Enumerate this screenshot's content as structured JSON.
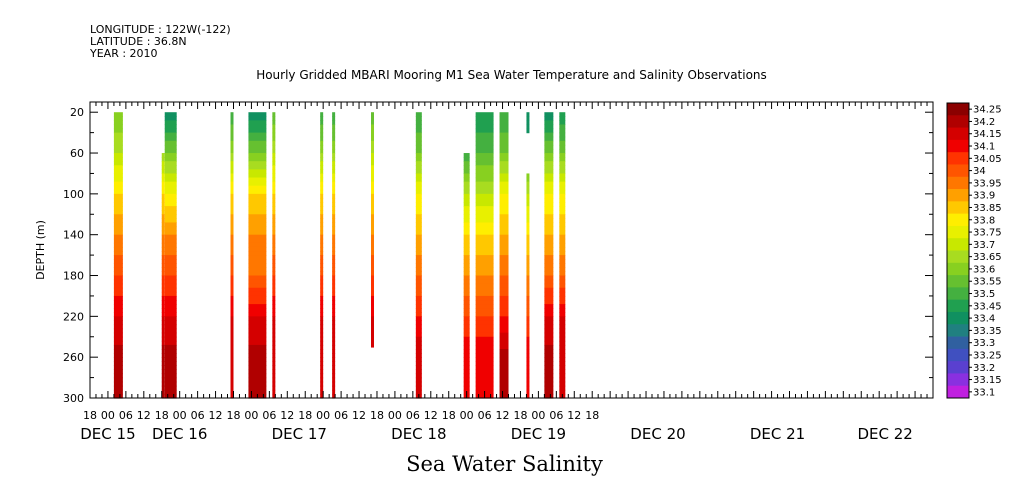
{
  "meta": {
    "longitude": "LONGITUDE : 122W(-122)",
    "latitude": "LATITUDE : 36.8N",
    "year": "YEAR : 2010"
  },
  "chart_data": {
    "type": "heatmap",
    "title": "Hourly Gridded MBARI Mooring M1 Sea Water Temperature and Salinity Observations",
    "xlabel": "",
    "ylabel": "DEPTH (m)",
    "bottom_title": "Sea Water Salinity",
    "x_unit": "hours since DEC 15 00:00, 2010",
    "xlim": [
      -6,
      276
    ],
    "ylim": [
      300,
      10
    ],
    "y_ticks": [
      20,
      60,
      100,
      140,
      180,
      220,
      260,
      300
    ],
    "x_hour_labels": [
      "18",
      "00",
      "06",
      "12",
      "18",
      "00",
      "06",
      "12",
      "18",
      "00",
      "06",
      "12",
      "18",
      "00",
      "06",
      "12",
      "18",
      "00",
      "06",
      "12",
      "18",
      "00",
      "06",
      "12",
      "18",
      "00",
      "06",
      "12",
      "18"
    ],
    "x_hour_label_positions": [
      -6,
      0,
      6,
      12,
      18,
      24,
      30,
      36,
      42,
      48,
      54,
      60,
      66,
      72,
      78,
      84,
      90,
      96,
      102,
      108,
      114,
      120,
      126,
      132,
      138,
      144,
      150,
      156,
      162
    ],
    "x_day_labels": [
      {
        "label": "DEC 15",
        "x": 0
      },
      {
        "label": "DEC 16",
        "x": 24
      },
      {
        "label": "DEC 17",
        "x": 64
      },
      {
        "label": "DEC 18",
        "x": 104
      },
      {
        "label": "DEC 19",
        "x": 144
      },
      {
        "label": "DEC 20",
        "x": 184
      },
      {
        "label": "DEC 21",
        "x": 224
      },
      {
        "label": "DEC 22",
        "x": 260
      }
    ],
    "colorbar": {
      "levels": [
        "34.25",
        "34.2",
        "34.15",
        "34.1",
        "34.05",
        "34",
        "33.95",
        "33.9",
        "33.85",
        "33.8",
        "33.75",
        "33.7",
        "33.65",
        "33.6",
        "33.55",
        "33.5",
        "33.45",
        "33.4",
        "33.35",
        "33.3",
        "33.25",
        "33.2",
        "33.15",
        "33.1"
      ],
      "colors": [
        "#8b0000",
        "#b00000",
        "#d40000",
        "#f00000",
        "#ff3300",
        "#ff5500",
        "#ff7700",
        "#ffa000",
        "#ffc800",
        "#ffee00",
        "#e8f000",
        "#c8e800",
        "#a8dc20",
        "#88d020",
        "#66c030",
        "#44b040",
        "#20a050",
        "#109060",
        "#208080",
        "#3060a0",
        "#4050c0",
        "#5a40d0",
        "#8a30e0",
        "#c020e0"
      ]
    },
    "segments": [
      {
        "x0": 2,
        "x1": 5,
        "top": 20,
        "profile": [
          [
            20,
            33.6
          ],
          [
            60,
            33.7
          ],
          [
            100,
            33.85
          ],
          [
            140,
            33.95
          ],
          [
            180,
            34.05
          ],
          [
            220,
            34.15
          ],
          [
            260,
            34.22
          ],
          [
            300,
            34.2
          ]
        ]
      },
      {
        "x0": 18,
        "x1": 19,
        "top": 60,
        "profile": [
          [
            60,
            33.65
          ],
          [
            100,
            33.85
          ],
          [
            140,
            33.95
          ],
          [
            180,
            34.05
          ],
          [
            220,
            34.15
          ],
          [
            260,
            34.22
          ],
          [
            300,
            34.2
          ]
        ]
      },
      {
        "x0": 19,
        "x1": 23,
        "top": 20,
        "profile": [
          [
            20,
            33.4
          ],
          [
            60,
            33.6
          ],
          [
            100,
            33.8
          ],
          [
            140,
            33.95
          ],
          [
            180,
            34.05
          ],
          [
            220,
            34.15
          ],
          [
            260,
            34.22
          ],
          [
            300,
            34.2
          ]
        ]
      },
      {
        "x0": 41,
        "x1": 42,
        "top": 20,
        "profile": [
          [
            20,
            33.5
          ],
          [
            60,
            33.65
          ],
          [
            100,
            33.85
          ],
          [
            140,
            33.95
          ],
          [
            180,
            34.05
          ],
          [
            220,
            34.15
          ],
          [
            260,
            34.2
          ],
          [
            300,
            34.15
          ]
        ]
      },
      {
        "x0": 47,
        "x1": 53,
        "top": 20,
        "profile": [
          [
            20,
            33.4
          ],
          [
            60,
            33.6
          ],
          [
            100,
            33.85
          ],
          [
            140,
            33.95
          ],
          [
            180,
            34.0
          ],
          [
            220,
            34.15
          ],
          [
            260,
            34.22
          ],
          [
            300,
            34.2
          ]
        ]
      },
      {
        "x0": 55,
        "x1": 56,
        "top": 20,
        "profile": [
          [
            20,
            33.55
          ],
          [
            60,
            33.7
          ],
          [
            100,
            33.85
          ],
          [
            140,
            33.95
          ],
          [
            180,
            34.05
          ],
          [
            220,
            34.15
          ],
          [
            260,
            34.2
          ],
          [
            300,
            34.15
          ]
        ]
      },
      {
        "x0": 71,
        "x1": 72,
        "top": 20,
        "profile": [
          [
            20,
            33.5
          ],
          [
            60,
            33.65
          ],
          [
            100,
            33.85
          ],
          [
            140,
            33.95
          ],
          [
            180,
            34.05
          ],
          [
            220,
            34.15
          ],
          [
            260,
            34.2
          ],
          [
            300,
            34.15
          ]
        ]
      },
      {
        "x0": 75,
        "x1": 76,
        "top": 20,
        "profile": [
          [
            20,
            33.5
          ],
          [
            60,
            33.65
          ],
          [
            100,
            33.85
          ],
          [
            140,
            33.95
          ],
          [
            180,
            34.05
          ],
          [
            220,
            34.15
          ],
          [
            260,
            34.2
          ],
          [
            300,
            34.15
          ]
        ]
      },
      {
        "x0": 88,
        "x1": 89,
        "top": 20,
        "bottom": 250,
        "profile": [
          [
            20,
            33.55
          ],
          [
            60,
            33.7
          ],
          [
            100,
            33.85
          ],
          [
            140,
            33.95
          ],
          [
            180,
            34.05
          ],
          [
            220,
            34.15
          ],
          [
            250,
            34.2
          ]
        ]
      },
      {
        "x0": 103,
        "x1": 105,
        "top": 20,
        "profile": [
          [
            20,
            33.5
          ],
          [
            60,
            33.6
          ],
          [
            100,
            33.8
          ],
          [
            140,
            33.9
          ],
          [
            180,
            34.0
          ],
          [
            220,
            34.1
          ],
          [
            260,
            34.2
          ],
          [
            300,
            34.15
          ]
        ]
      },
      {
        "x0": 119,
        "x1": 121,
        "top": 60,
        "profile": [
          [
            60,
            33.5
          ],
          [
            100,
            33.7
          ],
          [
            140,
            33.85
          ],
          [
            180,
            33.95
          ],
          [
            220,
            34.05
          ],
          [
            260,
            34.15
          ],
          [
            300,
            34.1
          ]
        ]
      },
      {
        "x0": 123,
        "x1": 129,
        "top": 20,
        "profile": [
          [
            20,
            33.45
          ],
          [
            60,
            33.55
          ],
          [
            100,
            33.7
          ],
          [
            140,
            33.85
          ],
          [
            180,
            33.95
          ],
          [
            220,
            34.05
          ],
          [
            260,
            34.15
          ],
          [
            300,
            34.12
          ]
        ]
      },
      {
        "x0": 131,
        "x1": 134,
        "top": 20,
        "profile": [
          [
            20,
            33.5
          ],
          [
            60,
            33.6
          ],
          [
            100,
            33.8
          ],
          [
            140,
            33.9
          ],
          [
            180,
            34.0
          ],
          [
            220,
            34.1
          ],
          [
            260,
            34.22
          ],
          [
            300,
            34.2
          ]
        ]
      },
      {
        "x0": 140,
        "x1": 141,
        "top": 20,
        "bottom": 40,
        "profile": [
          [
            20,
            33.4
          ],
          [
            40,
            33.45
          ]
        ]
      },
      {
        "x0": 140,
        "x1": 141,
        "top": 80,
        "profile": [
          [
            80,
            33.6
          ],
          [
            100,
            33.7
          ],
          [
            140,
            33.85
          ],
          [
            180,
            33.95
          ],
          [
            220,
            34.05
          ],
          [
            260,
            34.15
          ],
          [
            300,
            34.1
          ]
        ]
      },
      {
        "x0": 146,
        "x1": 149,
        "top": 20,
        "profile": [
          [
            20,
            33.4
          ],
          [
            60,
            33.6
          ],
          [
            100,
            33.8
          ],
          [
            140,
            33.9
          ],
          [
            180,
            34.0
          ],
          [
            220,
            34.15
          ],
          [
            260,
            34.22
          ],
          [
            300,
            34.2
          ]
        ]
      },
      {
        "x0": 151,
        "x1": 153,
        "top": 20,
        "profile": [
          [
            20,
            33.45
          ],
          [
            60,
            33.6
          ],
          [
            100,
            33.8
          ],
          [
            140,
            33.9
          ],
          [
            180,
            34.0
          ],
          [
            220,
            34.15
          ],
          [
            260,
            34.2
          ],
          [
            300,
            34.15
          ]
        ]
      }
    ]
  }
}
